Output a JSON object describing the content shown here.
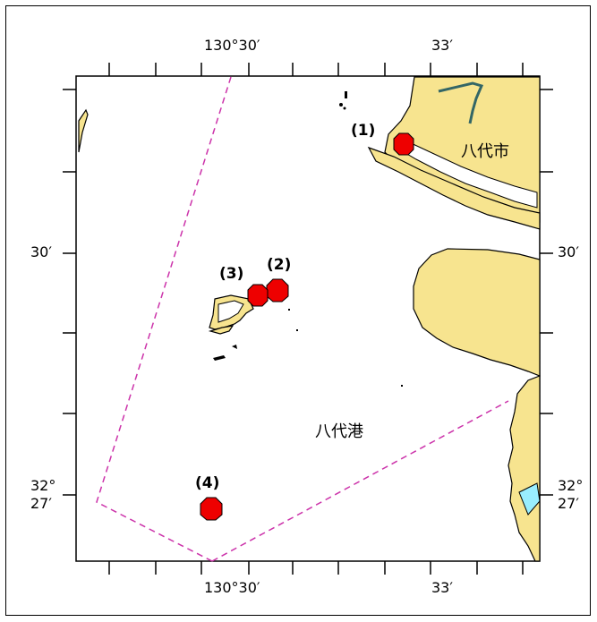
{
  "map": {
    "colors": {
      "land": "#f7e48f",
      "sea": "#ffffff",
      "coast": "#000000",
      "boundary": "#cc33aa",
      "marker": "#ee0000",
      "river": "#336666",
      "water_patch": "#99eeff"
    },
    "longitude_labels": {
      "top_left": "130°30′",
      "top_right": "33′",
      "bottom_left": "130°30′",
      "bottom_right": "33′"
    },
    "latitude_labels": {
      "left_30": "30′",
      "right_30": "30′",
      "left_27_deg": "32°",
      "left_27_min": "27′",
      "right_27_deg": "32°",
      "right_27_min": "27′"
    },
    "places": {
      "city": "八代市",
      "port": "八代港"
    },
    "sites": [
      {
        "label": "(1)"
      },
      {
        "label": "(2)"
      },
      {
        "label": "(3)"
      },
      {
        "label": "(4)"
      }
    ]
  }
}
